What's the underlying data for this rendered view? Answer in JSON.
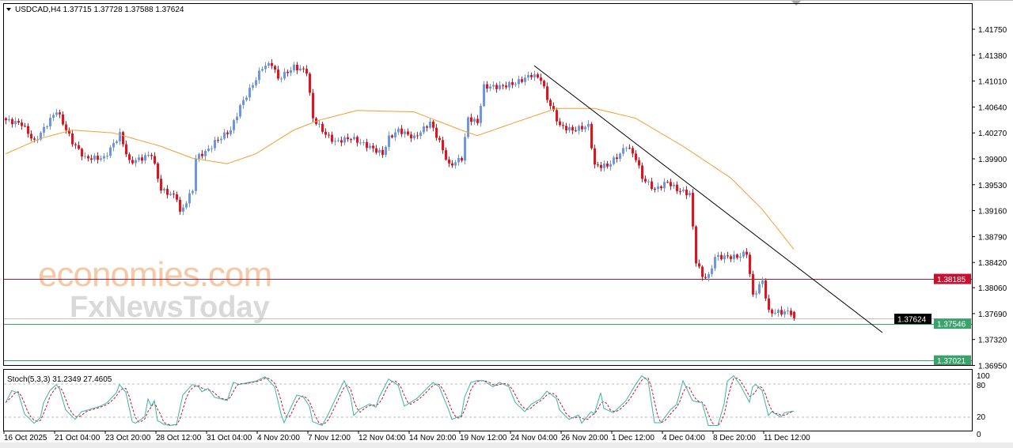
{
  "header": {
    "symbol_menu_icon": "triangle-down-icon",
    "title": "USDCAD,H4  1.37715 1.37728 1.37588 1.37624"
  },
  "watermarks": {
    "primary": "economies.com",
    "secondary": "FxNewsToday"
  },
  "colors": {
    "bull_candle": "#6f96e0",
    "bear_candle": "#e0141e",
    "moving_average": "#f0a030",
    "trendline": "#000000",
    "resistance_line": "#c8102e",
    "support_line": "#3aa36b",
    "stoch_main": "#3cb4a8",
    "stoch_signal": "#c8102e"
  },
  "chart_data": [
    {
      "type": "candlestick",
      "symbol": "USDCAD",
      "timeframe": "H4",
      "ohlc_last": {
        "open": 1.37715,
        "high": 1.37728,
        "low": 1.37588,
        "close": 1.37624
      },
      "y_ticks": [
        "1.41750",
        "1.41380",
        "1.41010",
        "1.40640",
        "1.40270",
        "1.39900",
        "1.39530",
        "1.39160",
        "1.38790",
        "1.38420",
        "1.38060",
        "1.37690",
        "1.37320",
        "1.36950"
      ],
      "ylim": [
        1.3686,
        1.4212
      ],
      "x_tick_labels": [
        "16 Oct 2025",
        "21 Oct 04:00",
        "23 Oct 20:00",
        "28 Oct 12:00",
        "31 Oct 04:00",
        "4 Nov 20:00",
        "7 Nov 12:00",
        "12 Nov 04:00",
        "14 Nov 20:00",
        "19 Nov 12:00",
        "24 Nov 04:00",
        "26 Nov 20:00",
        "1 Dec 12:00",
        "4 Dec 04:00",
        "8 Dec 20:00",
        "11 Dec 12:00"
      ],
      "bars_per_x_label": 16,
      "bar_count": 250,
      "price_path": [
        [
          0,
          1.4045
        ],
        [
          5,
          1.404
        ],
        [
          9,
          1.4014
        ],
        [
          16,
          1.4059
        ],
        [
          21,
          1.4014
        ],
        [
          25,
          1.3991
        ],
        [
          31,
          1.3991
        ],
        [
          36,
          1.4025
        ],
        [
          39,
          1.3985
        ],
        [
          43,
          1.3991
        ],
        [
          46,
          1.3997
        ],
        [
          49,
          1.3946
        ],
        [
          54,
          1.3935
        ],
        [
          55,
          1.3912
        ],
        [
          59,
          1.3946
        ],
        [
          60,
          1.3991
        ],
        [
          64,
          1.4003
        ],
        [
          66,
          1.4014
        ],
        [
          71,
          1.4031
        ],
        [
          74,
          1.4065
        ],
        [
          79,
          1.4104
        ],
        [
          81,
          1.4121
        ],
        [
          84,
          1.4126
        ],
        [
          86,
          1.4104
        ],
        [
          91,
          1.4121
        ],
        [
          95,
          1.4115
        ],
        [
          97,
          1.4048
        ],
        [
          101,
          1.4025
        ],
        [
          104,
          1.4014
        ],
        [
          109,
          1.402
        ],
        [
          114,
          1.4009
        ],
        [
          119,
          1.3997
        ],
        [
          121,
          1.402
        ],
        [
          124,
          1.4031
        ],
        [
          129,
          1.402
        ],
        [
          134,
          1.4042
        ],
        [
          137,
          1.4014
        ],
        [
          140,
          1.398
        ],
        [
          144,
          1.3991
        ],
        [
          146,
          1.4048
        ],
        [
          149,
          1.4042
        ],
        [
          151,
          1.4093
        ],
        [
          156,
          1.4093
        ],
        [
          161,
          1.4098
        ],
        [
          166,
          1.411
        ],
        [
          169,
          1.4104
        ],
        [
          171,
          1.4076
        ],
        [
          175,
          1.4037
        ],
        [
          179,
          1.4031
        ],
        [
          184,
          1.4037
        ],
        [
          186,
          1.398
        ],
        [
          190,
          1.398
        ],
        [
          194,
          1.3997
        ],
        [
          196,
          1.4009
        ],
        [
          199,
          1.3991
        ],
        [
          201,
          1.3963
        ],
        [
          205,
          1.3946
        ],
        [
          209,
          1.3957
        ],
        [
          212,
          1.3946
        ],
        [
          216,
          1.394
        ],
        [
          218,
          1.3844
        ],
        [
          220,
          1.3822
        ],
        [
          222,
          1.3822
        ],
        [
          224,
          1.385
        ],
        [
          227,
          1.385
        ],
        [
          231,
          1.385
        ],
        [
          234,
          1.3856
        ],
        [
          236,
          1.3794
        ],
        [
          239,
          1.3816
        ],
        [
          241,
          1.3771
        ],
        [
          245,
          1.3771
        ],
        [
          247,
          1.37715
        ],
        [
          249,
          1.37624
        ]
      ],
      "moving_average": [
        [
          0,
          1.3997
        ],
        [
          11,
          1.4019
        ],
        [
          21,
          1.4031
        ],
        [
          34,
          1.4027
        ],
        [
          49,
          1.4008
        ],
        [
          59,
          1.3991
        ],
        [
          70,
          1.3983
        ],
        [
          79,
          1.3997
        ],
        [
          91,
          1.4031
        ],
        [
          99,
          1.4045
        ],
        [
          111,
          1.4059
        ],
        [
          129,
          1.4057
        ],
        [
          144,
          1.4031
        ],
        [
          149,
          1.4023
        ],
        [
          161,
          1.4042
        ],
        [
          174,
          1.4062
        ],
        [
          186,
          1.4062
        ],
        [
          199,
          1.4048
        ],
        [
          214,
          1.4008
        ],
        [
          229,
          1.3963
        ],
        [
          239,
          1.3918
        ],
        [
          249,
          1.3861
        ]
      ],
      "trendline": [
        [
          167,
          1.4123
        ],
        [
          277,
          1.3742
        ]
      ],
      "horizontal_levels": [
        {
          "price": 1.38185,
          "label": "1.38185",
          "role": "resistance"
        },
        {
          "price": 1.37546,
          "label": "1.37546",
          "role": "support"
        },
        {
          "price": 1.37021,
          "label": "1.37021",
          "role": "support"
        }
      ],
      "current_price": {
        "price": 1.37624,
        "label": "1.37624"
      }
    },
    {
      "type": "line",
      "title": "Stoch(5,3,3) 31.2349 27.4605",
      "ylim": [
        0,
        100
      ],
      "y_ticks": [
        "100",
        "80",
        "20",
        "0"
      ],
      "levels": [
        80,
        20
      ],
      "main": [
        [
          0,
          46
        ],
        [
          2,
          68
        ],
        [
          4,
          64
        ],
        [
          6,
          26
        ],
        [
          9,
          9
        ],
        [
          11,
          19
        ],
        [
          12,
          46
        ],
        [
          14,
          68
        ],
        [
          16,
          79
        ],
        [
          17,
          72
        ],
        [
          19,
          33
        ],
        [
          22,
          16
        ],
        [
          24,
          30
        ],
        [
          26,
          33
        ],
        [
          30,
          40
        ],
        [
          32,
          46
        ],
        [
          35,
          64
        ],
        [
          36,
          79
        ],
        [
          38,
          65
        ],
        [
          40,
          12
        ],
        [
          41,
          9
        ],
        [
          44,
          21
        ],
        [
          45,
          53
        ],
        [
          46,
          40
        ],
        [
          47,
          50
        ],
        [
          48,
          14
        ],
        [
          50,
          7
        ],
        [
          52,
          5
        ],
        [
          54,
          7
        ],
        [
          56,
          60
        ],
        [
          59,
          79
        ],
        [
          61,
          75
        ],
        [
          62,
          66
        ],
        [
          64,
          72
        ],
        [
          66,
          56
        ],
        [
          70,
          50
        ],
        [
          72,
          83
        ],
        [
          74,
          79
        ],
        [
          76,
          82
        ],
        [
          79,
          85
        ],
        [
          82,
          93
        ],
        [
          85,
          75
        ],
        [
          87,
          26
        ],
        [
          88,
          10
        ],
        [
          90,
          36
        ],
        [
          92,
          60
        ],
        [
          94,
          57
        ],
        [
          96,
          40
        ],
        [
          97,
          12
        ],
        [
          100,
          5
        ],
        [
          102,
          26
        ],
        [
          106,
          75
        ],
        [
          107,
          86
        ],
        [
          109,
          57
        ],
        [
          110,
          23
        ],
        [
          112,
          35
        ],
        [
          115,
          44
        ],
        [
          117,
          38
        ],
        [
          118,
          56
        ],
        [
          121,
          89
        ],
        [
          124,
          78
        ],
        [
          126,
          40
        ],
        [
          128,
          47
        ],
        [
          130,
          54
        ],
        [
          135,
          83
        ],
        [
          137,
          75
        ],
        [
          140,
          33
        ],
        [
          141,
          16
        ],
        [
          144,
          23
        ],
        [
          145,
          56
        ],
        [
          147,
          83
        ],
        [
          149,
          86
        ],
        [
          151,
          86
        ],
        [
          154,
          75
        ],
        [
          156,
          83
        ],
        [
          159,
          75
        ],
        [
          161,
          47
        ],
        [
          164,
          30
        ],
        [
          166,
          43
        ],
        [
          169,
          53
        ],
        [
          171,
          67
        ],
        [
          174,
          54
        ],
        [
          175,
          33
        ],
        [
          178,
          16
        ],
        [
          181,
          24
        ],
        [
          182,
          9
        ],
        [
          185,
          30
        ],
        [
          186,
          26
        ],
        [
          188,
          64
        ],
        [
          189,
          36
        ],
        [
          192,
          28
        ],
        [
          196,
          50
        ],
        [
          199,
          79
        ],
        [
          201,
          95
        ],
        [
          203,
          86
        ],
        [
          205,
          10
        ],
        [
          207,
          10
        ],
        [
          210,
          33
        ],
        [
          212,
          43
        ],
        [
          214,
          86
        ],
        [
          217,
          50
        ],
        [
          219,
          47
        ],
        [
          220,
          47
        ],
        [
          222,
          5
        ],
        [
          225,
          5
        ],
        [
          227,
          44
        ],
        [
          228,
          85
        ],
        [
          230,
          95
        ],
        [
          232,
          79
        ],
        [
          235,
          47
        ],
        [
          236,
          75
        ],
        [
          237,
          79
        ],
        [
          239,
          68
        ],
        [
          241,
          23
        ],
        [
          242,
          30
        ],
        [
          245,
          20
        ],
        [
          246,
          28
        ],
        [
          249,
          31
        ]
      ]
    }
  ]
}
